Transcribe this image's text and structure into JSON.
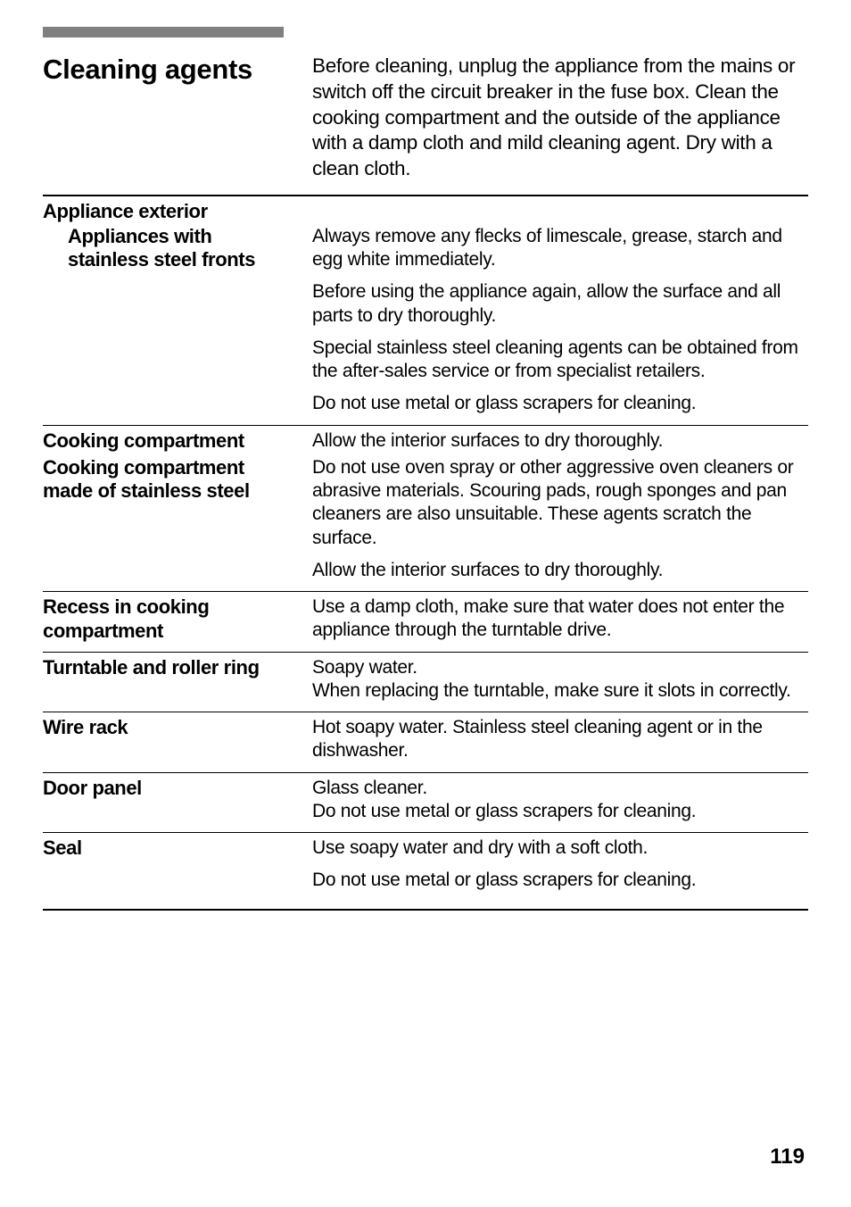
{
  "page": {
    "number": "119"
  },
  "heading": "Cleaning agents",
  "intro": "Before cleaning, unplug the appliance from the mains or switch off the circuit breaker in the fuse box. Clean the cooking compartment and the outside of the appliance with a damp cloth and mild cleaning agent. Dry with a clean cloth.",
  "sections": {
    "applianceExterior": {
      "title": "Appliance exterior",
      "sub": {
        "title": "Appliances with stainless steel fronts",
        "paras": [
          "Always remove any flecks of limescale, grease, starch and egg white immediately.",
          "Before using the appliance again, allow the surface and all parts to dry thoroughly.",
          "Special stainless steel cleaning agents can be obtained from the after-sales service or from specialist retailers.",
          "Do not use metal or glass scrapers for cleaning."
        ]
      }
    },
    "cookingCompartment": {
      "title": "Cooking compartment",
      "para": "Allow the interior surfaces to dry thoroughly."
    },
    "cookingCompartmentStainless": {
      "title": "Cooking compartment made of stainless steel",
      "paras": [
        "Do not use oven spray or other aggressive oven cleaners or abrasive materials. Scouring pads, rough sponges and pan cleaners are also unsuitable. These agents scratch the surface.",
        "Allow the interior surfaces to dry thoroughly."
      ]
    },
    "recess": {
      "title": "Recess in cooking compartment",
      "para": "Use a damp cloth, make sure that water does not enter the appliance through the turntable drive."
    },
    "turntable": {
      "title": "Turntable and roller ring",
      "paras": [
        "Soapy water.",
        "When replacing the turntable, make sure it slots in correctly."
      ]
    },
    "wireRack": {
      "title": "Wire rack",
      "para": "Hot soapy water. Stainless steel cleaning agent or in the dishwasher."
    },
    "doorPanel": {
      "title": "Door panel",
      "paras": [
        "Glass cleaner.",
        "Do not use metal or glass scrapers for cleaning."
      ]
    },
    "seal": {
      "title": "Seal",
      "paras": [
        "Use soapy water and dry with a soft cloth.",
        "Do not use metal or glass scrapers for cleaning."
      ]
    }
  }
}
